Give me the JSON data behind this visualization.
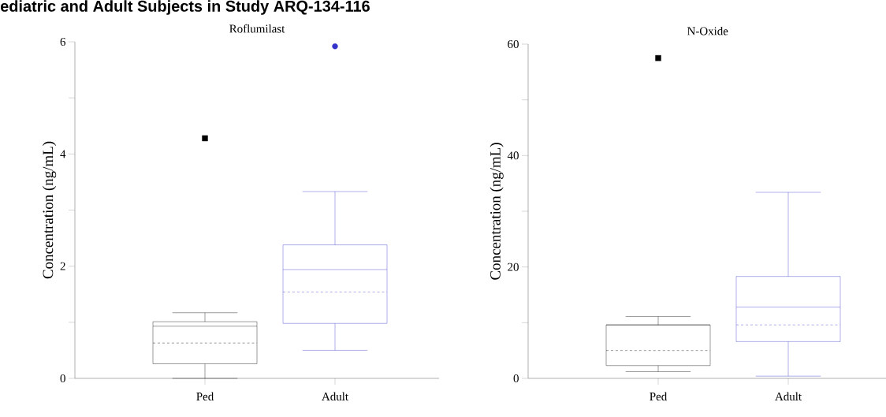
{
  "chart_data": [
    {
      "type": "box",
      "title": "ediatric and Adult Subjects in Study ARQ-134-116",
      "subtitle": "Roflumilast",
      "ylabel": "Concentration (ng/mL)",
      "categories": [
        "Ped",
        "Adult"
      ],
      "ylim": [
        0,
        6
      ],
      "yticks": [
        0,
        {
          "value": 1,
          "label": null
        },
        2,
        {
          "value": 3,
          "label": null
        },
        4,
        {
          "value": 5,
          "label": null
        },
        6
      ],
      "series": [
        {
          "color": "#000000",
          "marker": "square",
          "boxes": [
            {
              "low": 0,
              "q1": 0.26,
              "median": 0.93,
              "q3": 1.01,
              "high": 1.17,
              "mean": 0.63,
              "outliers": [
                4.28
              ]
            },
            null
          ]
        },
        {
          "color": "#3333cc",
          "marker": "circle",
          "boxes": [
            null,
            {
              "low": 0.5,
              "q1": 0.98,
              "median": 1.94,
              "q3": 2.38,
              "high": 3.33,
              "mean": 1.54,
              "outliers": [
                5.92
              ]
            }
          ]
        }
      ]
    },
    {
      "type": "box",
      "subtitle": "N-Oxide",
      "ylabel": "Concentration (ng/mL)",
      "categories": [
        "Ped",
        "Adult"
      ],
      "ylim": [
        0,
        60
      ],
      "yticks": [
        0,
        {
          "value": 10,
          "label": null
        },
        20,
        {
          "value": 30,
          "label": null
        },
        40,
        {
          "value": 50,
          "label": null
        },
        60
      ],
      "series": [
        {
          "color": "#000000",
          "marker": "square",
          "boxes": [
            {
              "low": 1.2,
              "q1": 2.3,
              "median": 9.6,
              "q3": 9.6,
              "high": 11.1,
              "mean": 5.0,
              "outliers": [
                57.5
              ]
            },
            null
          ]
        },
        {
          "color": "#3333cc",
          "boxes": [
            null,
            {
              "low": 0.4,
              "q1": 6.6,
              "median": 12.8,
              "q3": 18.3,
              "high": 33.4,
              "mean": 9.6
            }
          ]
        }
      ]
    }
  ]
}
